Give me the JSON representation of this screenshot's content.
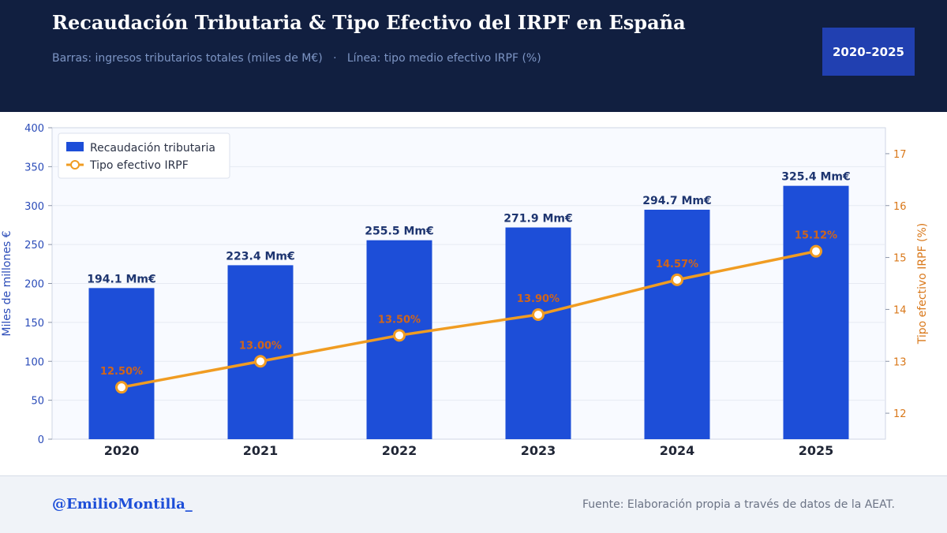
{
  "header": {
    "title": "Recaudación Tributaria & Tipo Efectivo del IRPF en España",
    "subtitle": "Barras: ingresos tributarios totales (miles de M€)   ·   Línea: tipo medio efectivo IRPF (%)",
    "badge": "2020–2025"
  },
  "footer": {
    "handle": "@EmilioMontilla_",
    "source": "Fuente: Elaboración propia a través de datos de la AEAT."
  },
  "colors": {
    "header_bg": "#111f40",
    "bar": "#1d4ed8",
    "line": "#f09c22",
    "line_label": "#d0651a",
    "bar_label": "#1e3570",
    "left_axis": "#2a4bb8",
    "right_axis": "#d9781a"
  },
  "chart_data": {
    "type": "bar+line",
    "categories": [
      "2020",
      "2021",
      "2022",
      "2023",
      "2024",
      "2025"
    ],
    "series": [
      {
        "name": "Recaudación tributaria",
        "type": "bar",
        "axis": "left",
        "values": [
          194.1,
          223.4,
          255.5,
          271.9,
          294.7,
          325.4
        ],
        "labels": [
          "194.1 Mm€",
          "223.4 Mm€",
          "255.5 Mm€",
          "271.9 Mm€",
          "294.7 Mm€",
          "325.4 Mm€"
        ]
      },
      {
        "name": "Tipo efectivo IRPF",
        "type": "line",
        "axis": "right",
        "values": [
          12.5,
          13.0,
          13.5,
          13.9,
          14.57,
          15.12
        ],
        "labels": [
          "12.50%",
          "13.00%",
          "13.50%",
          "13.90%",
          "14.57%",
          "15.12%"
        ]
      }
    ],
    "ylabel_left": "Miles de millones €",
    "ylabel_right": "Tipo efectivo IRPF (%)",
    "ylim_left": [
      0,
      400
    ],
    "yticks_left": [
      0,
      50,
      100,
      150,
      200,
      250,
      300,
      350,
      400
    ],
    "ylim_right": [
      11.5,
      17.5
    ],
    "yticks_right": [
      12,
      13,
      14,
      15,
      16,
      17
    ],
    "grid": true,
    "legend": "top-left"
  }
}
